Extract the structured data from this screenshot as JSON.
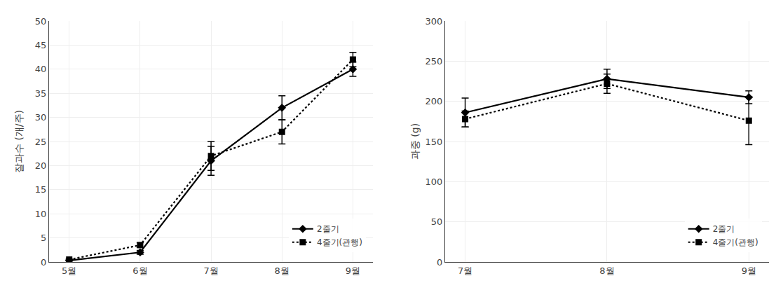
{
  "chart_data": [
    {
      "type": "line",
      "categories": [
        "5월",
        "6월",
        "7월",
        "8월",
        "9월"
      ],
      "ylabel": "잘과수 (개/주)",
      "ylim": [
        0,
        50
      ],
      "yticks": [
        0,
        5,
        10,
        15,
        20,
        25,
        30,
        35,
        40,
        45,
        50
      ],
      "legend": "lower right",
      "series": [
        {
          "name": "2줄기",
          "color": "#000000",
          "line_style": "solid",
          "marker": "diamond",
          "values": [
            0.3,
            2.0,
            21.0,
            32.0,
            40.0
          ],
          "errors": [
            0.1,
            0.4,
            3.0,
            2.5,
            1.5
          ]
        },
        {
          "name": "4줄기(관행)",
          "color": "#000000",
          "line_style": "dotted",
          "marker": "square",
          "values": [
            0.5,
            3.5,
            22.0,
            27.0,
            42.0
          ],
          "errors": [
            0.1,
            0.5,
            3.0,
            2.5,
            1.5
          ]
        }
      ]
    },
    {
      "type": "line",
      "categories": [
        "7월",
        "8월",
        "9월"
      ],
      "ylabel": "과중 (g)",
      "ylim": [
        0,
        300
      ],
      "yticks": [
        0,
        50,
        100,
        150,
        200,
        250,
        300
      ],
      "legend": "lower right",
      "series": [
        {
          "name": "2줄기",
          "color": "#000000",
          "line_style": "solid",
          "marker": "diamond",
          "values": [
            186.0,
            228.0,
            205.0
          ],
          "errors": [
            18.0,
            12.0,
            8.0
          ]
        },
        {
          "name": "4줄기(관행)",
          "color": "#000000",
          "line_style": "dotted",
          "marker": "square",
          "values": [
            178.0,
            222.0,
            176.0
          ],
          "errors": [
            10.0,
            12.0,
            30.0
          ]
        }
      ]
    }
  ]
}
